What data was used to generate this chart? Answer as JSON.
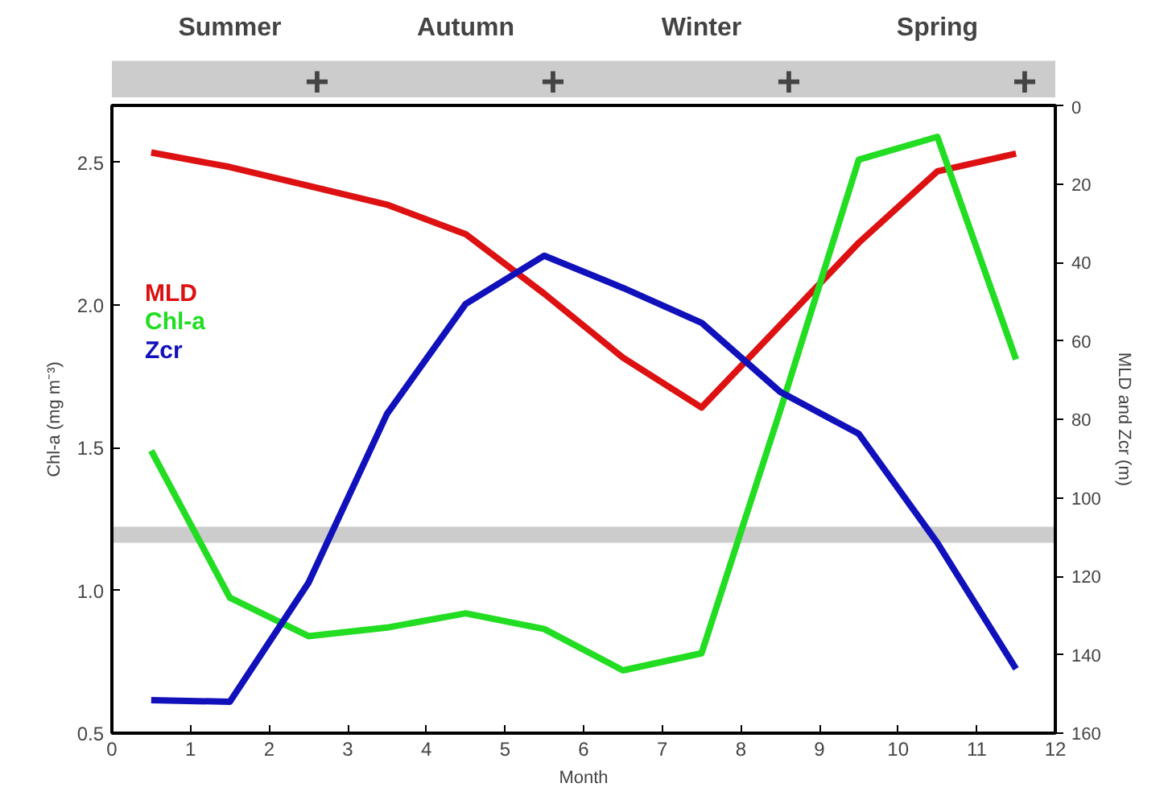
{
  "chart_data": {
    "type": "line",
    "xlabel": "Month",
    "ylabel": "Chl-a (mg m⁻³)",
    "y2label": "MLD and Zcr (m)",
    "x": [
      0.5,
      1.5,
      2.5,
      3.5,
      4.5,
      5.5,
      6.5,
      7.5,
      8.5,
      9.5,
      10.5,
      11.5
    ],
    "series": [
      {
        "name": "MLD",
        "color": "#dd1111",
        "axis": "y2",
        "values": [
          12,
          15.7,
          20.5,
          25.3,
          32.8,
          48,
          64.3,
          77,
          56,
          35,
          16.8,
          12.3
        ]
      },
      {
        "name": "Chl-a",
        "color": "#22dd22",
        "values": [
          1.49,
          0.975,
          0.84,
          0.87,
          0.92,
          0.865,
          0.72,
          0.78,
          1.63,
          2.51,
          2.59,
          1.81
        ]
      },
      {
        "name": "Zcr",
        "color": "#1111bb",
        "axis": "y2",
        "values": [
          151.6,
          152,
          121.7,
          78.6,
          50.6,
          38.3,
          46.5,
          55.4,
          73,
          83.7,
          111.5,
          143.6
        ]
      }
    ],
    "xlim": [
      0,
      12
    ],
    "xticks": [
      0,
      1,
      2,
      3,
      4,
      5,
      6,
      7,
      8,
      9,
      10,
      11,
      12
    ],
    "ylim": [
      0.5,
      2.7
    ],
    "yticks": [
      {
        "value": 0.5,
        "label": "0.5"
      },
      {
        "value": 1,
        "label": "1.0"
      },
      {
        "value": 1.5,
        "label": "1.5"
      },
      {
        "value": 2,
        "label": "2.0"
      },
      {
        "value": 2.5,
        "label": "2.5"
      }
    ],
    "y2lim": [
      160,
      0
    ],
    "y2ticks": [
      0,
      20,
      40,
      60,
      80,
      100,
      120,
      140,
      160
    ],
    "annotations": [
      "Summer",
      "+",
      "Autumn",
      "+",
      "Winter",
      "+",
      "Spring",
      "+"
    ],
    "bands": [
      {
        "axis": "y2",
        "from": 107.4,
        "to": 111.5,
        "color": "#cccccc"
      }
    ],
    "legend": "top left",
    "grid": false,
    "line_style": "solid",
    "marker": "none"
  }
}
